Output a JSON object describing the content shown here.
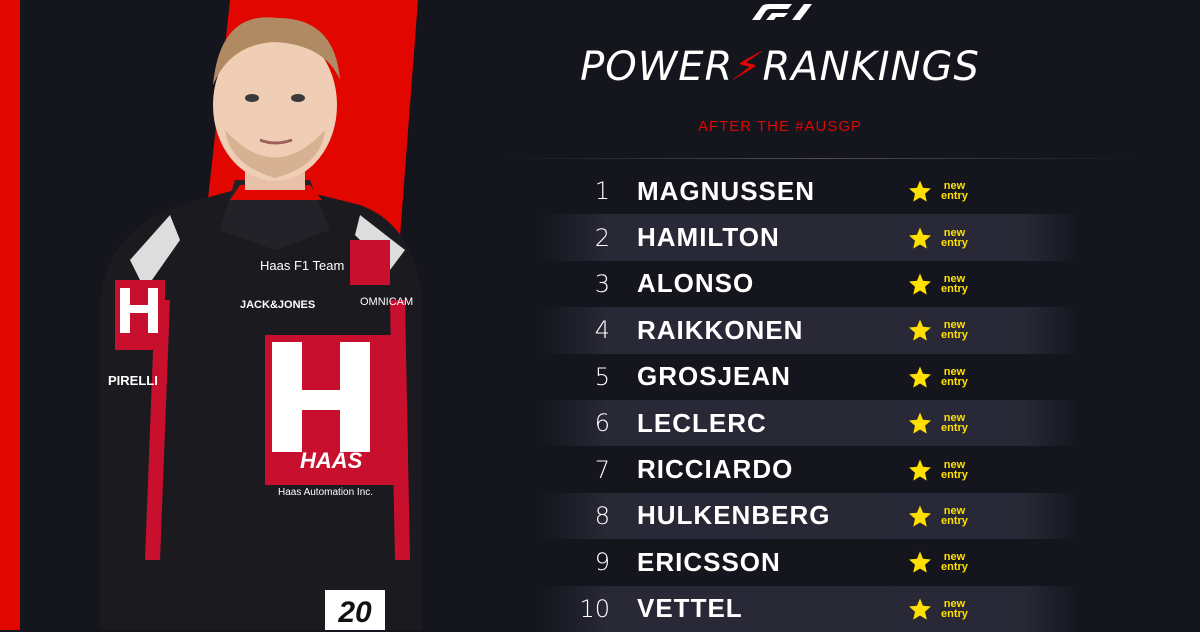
{
  "colors": {
    "background": "#15151e",
    "brand_red": "#e10600",
    "star_yellow": "#ffe000",
    "text": "#ffffff"
  },
  "header": {
    "logo": "F1",
    "title_part1": "POWER",
    "title_part2": "RANKINGS",
    "subtitle": "AFTER THE #AUSGP"
  },
  "rankings": [
    {
      "pos": "1",
      "name": "MAGNUSSEN",
      "badge_top": "new",
      "badge_bottom": "entry",
      "icon": "star-icon"
    },
    {
      "pos": "2",
      "name": "HAMILTON",
      "badge_top": "new",
      "badge_bottom": "entry",
      "icon": "star-icon"
    },
    {
      "pos": "3",
      "name": "ALONSO",
      "badge_top": "new",
      "badge_bottom": "entry",
      "icon": "star-icon"
    },
    {
      "pos": "4",
      "name": "RAIKKONEN",
      "badge_top": "new",
      "badge_bottom": "entry",
      "icon": "star-icon"
    },
    {
      "pos": "5",
      "name": "GROSJEAN",
      "badge_top": "new",
      "badge_bottom": "entry",
      "icon": "star-icon"
    },
    {
      "pos": "6",
      "name": "LECLERC",
      "badge_top": "new",
      "badge_bottom": "entry",
      "icon": "star-icon"
    },
    {
      "pos": "7",
      "name": "RICCIARDO",
      "badge_top": "new",
      "badge_bottom": "entry",
      "icon": "star-icon"
    },
    {
      "pos": "8",
      "name": "HULKENBERG",
      "badge_top": "new",
      "badge_bottom": "entry",
      "icon": "star-icon"
    },
    {
      "pos": "9",
      "name": "ERICSSON",
      "badge_top": "new",
      "badge_bottom": "entry",
      "icon": "star-icon"
    },
    {
      "pos": "10",
      "name": "VETTEL",
      "badge_top": "new",
      "badge_bottom": "entry",
      "icon": "star-icon"
    }
  ],
  "portrait": {
    "suit_texts": {
      "haas": "HAAS",
      "haas_f1_team": "Haas F1 Team",
      "sponsor1": "JACK&JONES",
      "sponsor2": "OMNICAM",
      "sponsor3": "PIRELLI",
      "footer": "Haas Automation Inc.",
      "number": "20"
    }
  }
}
